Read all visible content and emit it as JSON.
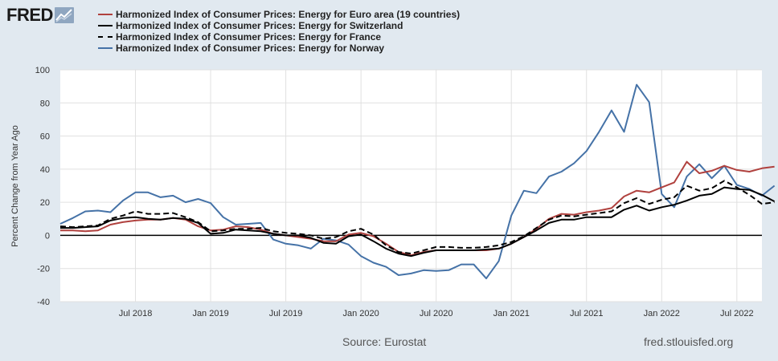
{
  "logo": {
    "text": "FRED",
    "icon": "chart-line-icon"
  },
  "footer": {
    "source": "Source: Eurostat",
    "site": "fred.stlouisfed.org"
  },
  "chart_data": {
    "type": "line",
    "ylabel": "Percent Change from Year Ago",
    "ylim": [
      -40,
      100
    ],
    "yticks": [
      -40,
      -20,
      0,
      20,
      40,
      60,
      80,
      100
    ],
    "xlim": [
      "2018-01",
      "2022-09"
    ],
    "xticks": [
      {
        "date": "2018-07",
        "label": "Jul 2018"
      },
      {
        "date": "2019-01",
        "label": "Jan 2019"
      },
      {
        "date": "2019-07",
        "label": "Jul 2019"
      },
      {
        "date": "2020-01",
        "label": "Jan 2020"
      },
      {
        "date": "2020-07",
        "label": "Jul 2020"
      },
      {
        "date": "2021-01",
        "label": "Jan 2021"
      },
      {
        "date": "2021-07",
        "label": "Jul 2021"
      },
      {
        "date": "2022-01",
        "label": "Jan 2022"
      },
      {
        "date": "2022-07",
        "label": "Jul 2022"
      }
    ],
    "grid": true,
    "legend_position": "top",
    "zero_line": true,
    "series": [
      {
        "name": "Harmonized Index of Consumer Prices: Energy for Euro area (19 countries)",
        "color": "#b0413e",
        "dash": "solid",
        "start": "2018-01",
        "values": [
          3,
          3,
          2.5,
          3,
          6.5,
          8,
          9,
          9.5,
          9.5,
          10.5,
          9.5,
          5.5,
          3,
          3.5,
          5.5,
          5,
          3.5,
          1,
          0,
          -1,
          -2,
          -3.5,
          -3.5,
          0.5,
          1.5,
          -0.5,
          -5,
          -10,
          -12,
          -10,
          -9,
          -9,
          -9,
          -9,
          -9,
          -8,
          -5,
          -1,
          4,
          10,
          13,
          12.5,
          14,
          15,
          16.5,
          23.5,
          27,
          26,
          29,
          32,
          44.5,
          37.5,
          39,
          42,
          39.5,
          38.5,
          40.5,
          41.5
        ]
      },
      {
        "name": "Harmonized Index of Consumer Prices: Energy for Switzerland",
        "color": "#000000",
        "dash": "solid",
        "start": "2018-01",
        "values": [
          4.5,
          4.5,
          5,
          5.5,
          9,
          10.5,
          11,
          10,
          9.5,
          10.5,
          10,
          7.5,
          1,
          1.5,
          3.5,
          3,
          2.5,
          1,
          0,
          0,
          -1.5,
          -4.5,
          -5,
          -0.5,
          0.5,
          -3.5,
          -8,
          -11,
          -12.5,
          -10.5,
          -9,
          -9,
          -9,
          -9,
          -8.5,
          -8,
          -5,
          -1,
          3,
          7.5,
          9.5,
          9.5,
          11,
          11,
          11,
          15.5,
          18,
          15,
          17,
          18.5,
          21,
          24,
          25,
          29,
          28,
          27.5,
          24.5,
          20.5
        ]
      },
      {
        "name": "Harmonized Index of Consumer Prices: Energy for France",
        "color": "#000000",
        "dash": "dashed",
        "start": "2018-01",
        "values": [
          5.5,
          5,
          5.5,
          6,
          10,
          12,
          14.5,
          13,
          13,
          13.5,
          11,
          8,
          2.5,
          3,
          4,
          4,
          4.5,
          2.5,
          1.5,
          1,
          0,
          -2,
          -1,
          2.5,
          4,
          0.5,
          -6,
          -10,
          -11,
          -9,
          -7,
          -7,
          -7.5,
          -7.5,
          -7,
          -6,
          -4,
          -0.5,
          4.5,
          9.5,
          12,
          11.5,
          12.5,
          13.5,
          14.5,
          19.5,
          22.5,
          19,
          21.5,
          23,
          30,
          27,
          28.5,
          33,
          29,
          24.5,
          19,
          20
        ]
      },
      {
        "name": "Harmonized Index of Consumer Prices: Energy for Norway",
        "color": "#4572a7",
        "dash": "solid",
        "start": "2018-01",
        "values": [
          7,
          10.5,
          14.5,
          15,
          14,
          21,
          26,
          26,
          23,
          24,
          20,
          22,
          19.5,
          11,
          6.5,
          7,
          7.5,
          -2.5,
          -5,
          -6,
          -8,
          -2,
          -3,
          -5.5,
          -12.5,
          -16.5,
          -19,
          -24,
          -23,
          -21,
          -21.5,
          -21,
          -17.5,
          -17.5,
          -26,
          -15.5,
          12,
          27,
          25.5,
          35.5,
          38.5,
          43.5,
          51,
          62.5,
          75.5,
          62.5,
          91,
          80.5,
          25,
          17,
          35.5,
          43,
          34.5,
          42,
          30.5,
          28,
          24,
          30
        ]
      }
    ]
  }
}
